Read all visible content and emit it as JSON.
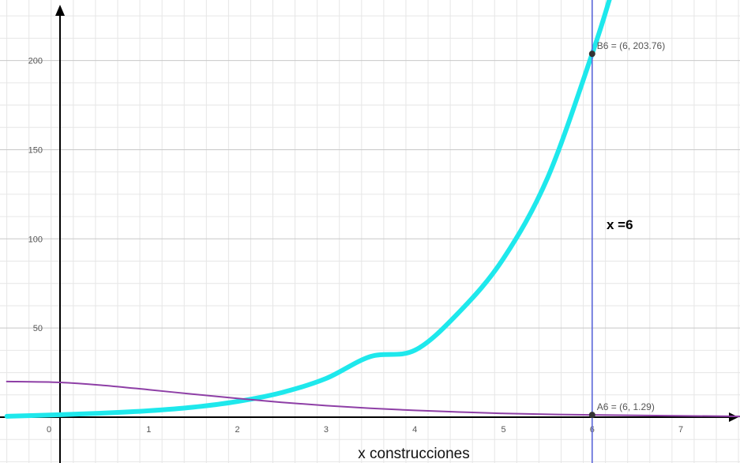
{
  "chart_data": {
    "type": "line",
    "title": "",
    "xlabel": "x construcciones",
    "ylabel": "",
    "xlim": [
      -0.6,
      7.7
    ],
    "ylim": [
      -25,
      232
    ],
    "grid": true,
    "x_ticks": [
      "0",
      "1",
      "2",
      "3",
      "4",
      "5",
      "6",
      "7"
    ],
    "y_ticks": [
      "50",
      "100",
      "150",
      "200"
    ],
    "colors": {
      "grid_minor": "#e6e6e6",
      "grid_major": "#c8c8c8",
      "axis": "#000000",
      "exponential_curve": "#1ee8ec",
      "decay_curve": "#8e3fa6",
      "vertical_line": "#5b66d9",
      "point": "#333333"
    },
    "series": [
      {
        "key": "exponential",
        "x": [
          -0.6,
          0,
          0.5,
          1,
          1.5,
          2,
          2.5,
          3,
          3.5,
          4,
          4.5,
          5,
          5.5,
          6,
          6.2
        ],
        "y": [
          0.5,
          1.4,
          2.3,
          3.6,
          5.6,
          8.8,
          13.8,
          21.7,
          34.0,
          37.5,
          58.9,
          89.0,
          134.5,
          203.76,
          235.0
        ]
      },
      {
        "key": "decay",
        "x": [
          -0.6,
          0,
          0.5,
          1,
          1.5,
          2,
          2.5,
          3,
          3.5,
          4,
          4.5,
          5,
          5.5,
          6,
          7.7
        ],
        "y": [
          20.0,
          19.5,
          17.8,
          15.4,
          12.9,
          10.5,
          8.3,
          6.5,
          5.0,
          3.8,
          2.9,
          2.1,
          1.6,
          1.29,
          0.4
        ]
      }
    ],
    "points": [
      {
        "label": "B6 = (6, 203.76)",
        "x": 6,
        "y": 203.76
      },
      {
        "label": "A6 = (6, 1.29)",
        "x": 6,
        "y": 1.29
      }
    ],
    "vertical_line": {
      "x": 6,
      "label": "x =6"
    }
  }
}
